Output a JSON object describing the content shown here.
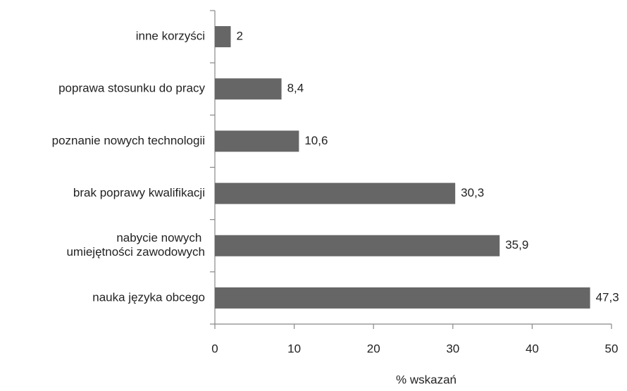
{
  "chart_data": {
    "type": "bar",
    "orientation": "horizontal",
    "categories": [
      "inne korzyści",
      "poprawa stosunku do pracy",
      "poznanie nowych technologii",
      "brak poprawy kwalifikacji",
      "nabycie nowych umiejętności zawodowych",
      "nauka języka obcego"
    ],
    "values": [
      2,
      8.4,
      10.6,
      30.3,
      35.9,
      47.3
    ],
    "value_labels": [
      "2",
      "8,4",
      "10,6",
      "30,3",
      "35,9",
      "47,3"
    ],
    "color": "#666666",
    "xlim": [
      0,
      50
    ],
    "xticks": [
      0,
      10,
      20,
      30,
      40,
      50
    ],
    "xlabel": "% wskazań",
    "grid": false
  }
}
